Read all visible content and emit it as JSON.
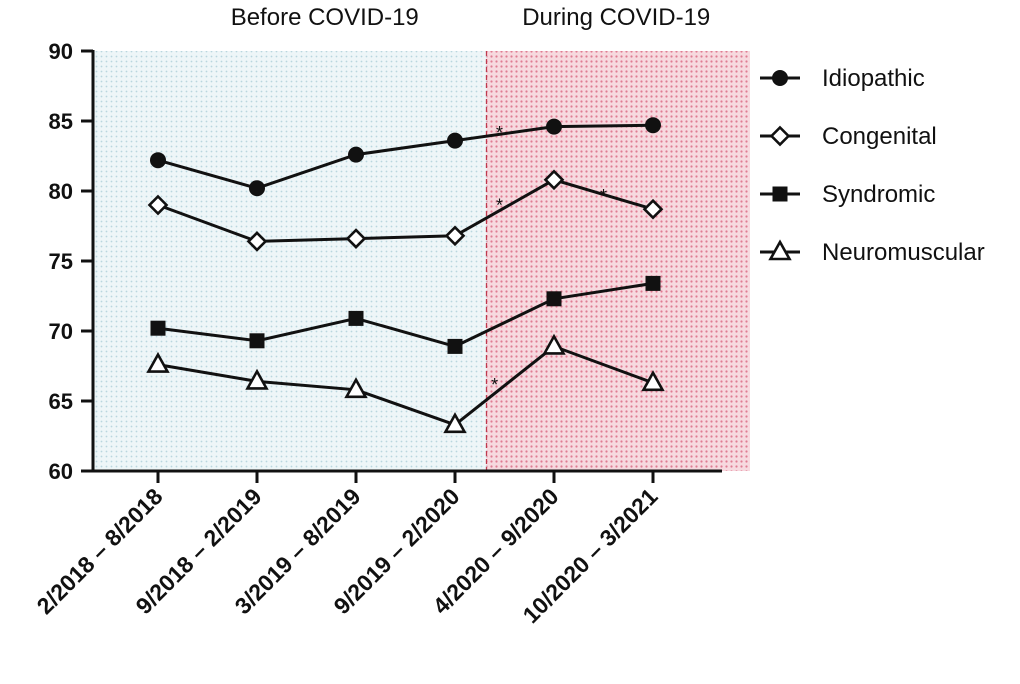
{
  "chart_data": {
    "type": "line",
    "categories": [
      "2/2018 – 8/2018",
      "9/2018 – 2/2019",
      "3/2019 – 8/2019",
      "9/2019 – 2/2020",
      "4/2020 – 9/2020",
      "10/2020 – 3/2021"
    ],
    "ylim": [
      60,
      90
    ],
    "yticks": [
      "60",
      "65",
      "70",
      "75",
      "80",
      "85",
      "90"
    ],
    "periods": [
      {
        "label": "Before COVID-19",
        "range": [
          0,
          3.5
        ],
        "fill": "#e3f0f4"
      },
      {
        "label": "During COVID-19",
        "range": [
          3.5,
          5.7
        ],
        "fill": "#f0b8c4"
      }
    ],
    "series": [
      {
        "name": "Idiopathic",
        "marker": "circle",
        "values": [
          82.2,
          80.2,
          82.6,
          83.6,
          84.6,
          84.7
        ]
      },
      {
        "name": "Congenital",
        "marker": "diamond",
        "values": [
          79.0,
          76.4,
          76.6,
          76.8,
          80.8,
          78.7
        ]
      },
      {
        "name": "Syndromic",
        "marker": "square",
        "values": [
          70.2,
          69.3,
          70.9,
          68.9,
          72.3,
          73.4
        ]
      },
      {
        "name": "Neuromuscular",
        "marker": "triangle",
        "values": [
          67.6,
          66.4,
          65.8,
          63.3,
          68.9,
          66.3
        ]
      }
    ],
    "annotations": [
      {
        "text": "*",
        "x": 3.45,
        "y": 84.3
      },
      {
        "text": "*",
        "x": 3.45,
        "y": 79.1
      },
      {
        "text": "*",
        "x": 4.5,
        "y": 79.8
      },
      {
        "text": "*",
        "x": 3.4,
        "y": 66.3
      }
    ],
    "legend_position": "right",
    "grid": false,
    "colors": {
      "line": "#111111",
      "divider": "#c0394e"
    }
  }
}
